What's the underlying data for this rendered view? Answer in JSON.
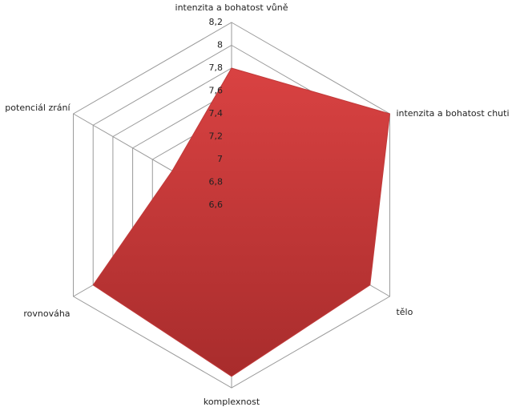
{
  "chart_data": {
    "type": "radar",
    "categories": [
      "intenzita a bohatost vůně",
      "intenzita a bohatost chuti",
      "tělo",
      "komplexnost",
      "rovnováha",
      "potenciál zrání"
    ],
    "values": [
      7.8,
      8.2,
      8.0,
      8.1,
      8.0,
      7.2
    ],
    "color": "#d94242",
    "ylim": [
      6.6,
      8.2
    ],
    "yticks": [
      {
        "value": 6.6,
        "label": "6,6"
      },
      {
        "value": 6.8,
        "label": "6,8"
      },
      7,
      {
        "value": 7.2,
        "label": "7,2"
      },
      {
        "value": 7.4,
        "label": "7,4"
      },
      {
        "value": 7.6,
        "label": "7,6"
      },
      {
        "value": 7.8,
        "label": "7,8"
      },
      8,
      {
        "value": 8.2,
        "label": "8,2"
      }
    ],
    "grid": true
  }
}
